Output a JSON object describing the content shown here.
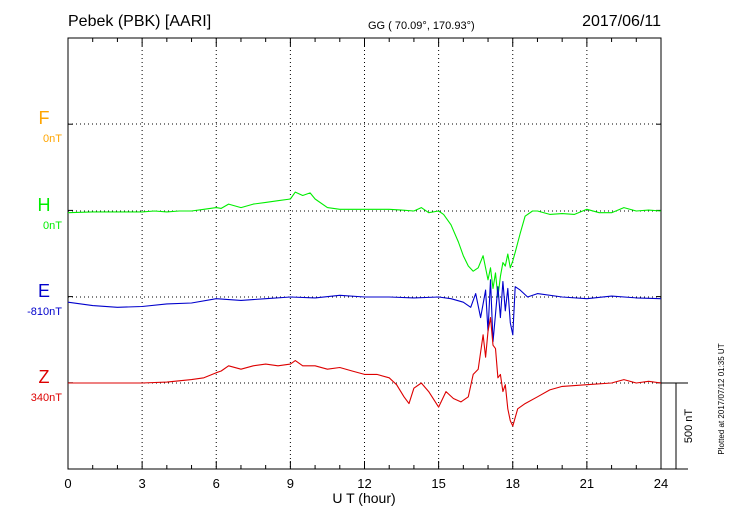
{
  "header": {
    "station": "Pebek (PBK)  [AARI]",
    "coords": "GG ( 70.09°, 170.93°)",
    "date": "2017/06/11"
  },
  "footer": {
    "plotted": "Plotted at 2017/07/12 01:35 UT"
  },
  "chart_data": {
    "type": "line",
    "xlabel": "U T (hour)",
    "xlim": [
      0,
      24
    ],
    "xticks": [
      0,
      3,
      6,
      9,
      12,
      15,
      18,
      21,
      24
    ],
    "grid": true,
    "scale_bar": {
      "label": "500 nT",
      "value": 500
    },
    "series": [
      {
        "name": "F",
        "offset_label": "0nT",
        "color": "#ffa500",
        "x": [],
        "y": []
      },
      {
        "name": "H",
        "offset_label": "0nT",
        "color": "#00ee00",
        "x": [
          0,
          1,
          2,
          3,
          3.5,
          4,
          4.5,
          5,
          5.5,
          6,
          6.2,
          6.5,
          7,
          7.5,
          8,
          8.5,
          9,
          9.2,
          9.5,
          9.8,
          10,
          10.5,
          11,
          11.5,
          12,
          12.5,
          13,
          13.5,
          14,
          14.3,
          14.6,
          15,
          15.2,
          15.5,
          15.8,
          16,
          16.2,
          16.4,
          16.6,
          16.8,
          17,
          17.1,
          17.2,
          17.3,
          17.4,
          17.5,
          17.6,
          17.7,
          17.8,
          17.9,
          18,
          18.1,
          18.3,
          18.5,
          18.8,
          19,
          19.5,
          20,
          20.5,
          21,
          21.5,
          22,
          22.5,
          23,
          23.5,
          24
        ],
        "y": [
          -10,
          -5,
          -5,
          -5,
          0,
          -5,
          0,
          0,
          10,
          20,
          15,
          40,
          20,
          40,
          50,
          60,
          70,
          110,
          90,
          105,
          70,
          20,
          10,
          10,
          10,
          10,
          10,
          5,
          0,
          20,
          -10,
          0,
          -20,
          -80,
          -180,
          -260,
          -320,
          -350,
          -330,
          -260,
          -400,
          -330,
          -450,
          -360,
          -500,
          -380,
          -300,
          -320,
          -250,
          -330,
          -290,
          -240,
          -130,
          -30,
          0,
          0,
          -20,
          -15,
          -20,
          10,
          -10,
          -10,
          20,
          0,
          5,
          0
        ]
      },
      {
        "name": "E",
        "offset_label": "-810nT",
        "color": "#0000cc",
        "x": [
          0,
          1,
          2,
          3,
          4,
          5,
          6,
          7,
          8,
          9,
          10,
          11,
          12,
          13,
          14,
          15,
          15.5,
          16,
          16.3,
          16.5,
          16.7,
          16.9,
          17,
          17.1,
          17.2,
          17.3,
          17.4,
          17.5,
          17.6,
          17.7,
          17.8,
          17.9,
          18,
          18.1,
          18.3,
          18.6,
          19,
          20,
          21,
          22,
          23,
          24
        ],
        "y": [
          -30,
          -50,
          -60,
          -55,
          -40,
          -35,
          -10,
          -20,
          -10,
          0,
          -5,
          10,
          0,
          0,
          -5,
          0,
          -10,
          -30,
          -60,
          20,
          -120,
          40,
          -200,
          100,
          -260,
          -100,
          60,
          -120,
          90,
          -80,
          50,
          -150,
          -220,
          60,
          40,
          0,
          20,
          0,
          -10,
          5,
          -5,
          -10
        ]
      },
      {
        "name": "Z",
        "offset_label": "340nT",
        "color": "#dd0000",
        "x": [
          0,
          1,
          2,
          3,
          4,
          5,
          5.5,
          6,
          6.2,
          6.5,
          7,
          7.5,
          8,
          8.5,
          9,
          9.2,
          9.5,
          10,
          10.5,
          11,
          11.5,
          12,
          12.5,
          13,
          13.3,
          13.6,
          13.8,
          14,
          14.3,
          14.6,
          15,
          15.3,
          15.6,
          15.9,
          16.2,
          16.4,
          16.6,
          16.8,
          16.9,
          17,
          17.1,
          17.2,
          17.3,
          17.4,
          17.5,
          17.6,
          17.7,
          17.8,
          17.9,
          18,
          18.2,
          18.5,
          19,
          19.5,
          20,
          21,
          22,
          22.5,
          23,
          23.5,
          24
        ],
        "y": [
          0,
          0,
          0,
          0,
          5,
          20,
          30,
          60,
          70,
          100,
          80,
          100,
          110,
          100,
          110,
          130,
          100,
          100,
          80,
          90,
          70,
          50,
          50,
          30,
          -10,
          -80,
          -120,
          -30,
          0,
          -50,
          -140,
          -50,
          -90,
          -110,
          -80,
          50,
          80,
          280,
          150,
          300,
          380,
          220,
          200,
          30,
          50,
          -50,
          -10,
          -150,
          -220,
          -250,
          -150,
          -120,
          -80,
          -40,
          -20,
          -10,
          0,
          20,
          0,
          10,
          0
        ]
      }
    ]
  }
}
